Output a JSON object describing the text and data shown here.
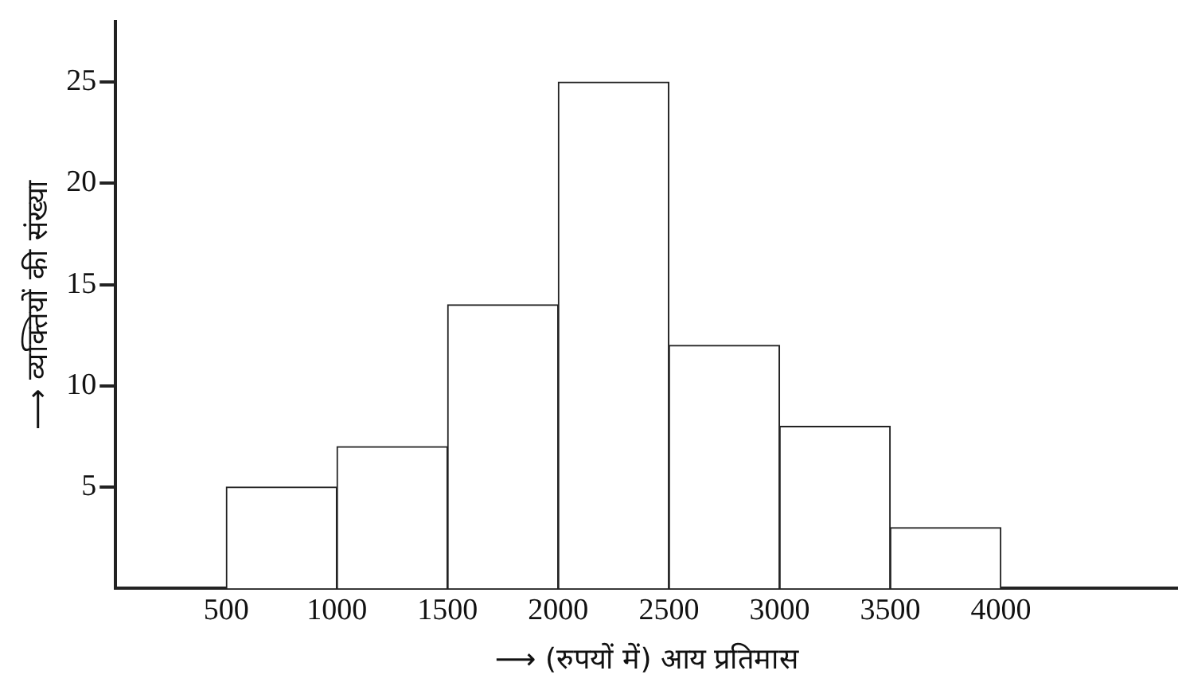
{
  "chart_data": {
    "type": "histogram",
    "xlabel": "⟶ (रुपयों में) आय प्रतिमास",
    "ylabel": "⟶ व्यक्तियों की संख्या",
    "bins": [
      500,
      1000,
      1500,
      2000,
      2500,
      3000,
      3500,
      4000
    ],
    "values": [
      5,
      7,
      14,
      25,
      12,
      8,
      3
    ],
    "color": "#ffffff",
    "xlim": [
      0,
      4800
    ],
    "xticks": [
      500,
      1000,
      1500,
      2000,
      2500,
      3000,
      3500,
      4000
    ],
    "ylim": [
      0,
      28
    ],
    "yticks": [
      5,
      10,
      15,
      20,
      25
    ],
    "grid": false,
    "legend": false
  }
}
